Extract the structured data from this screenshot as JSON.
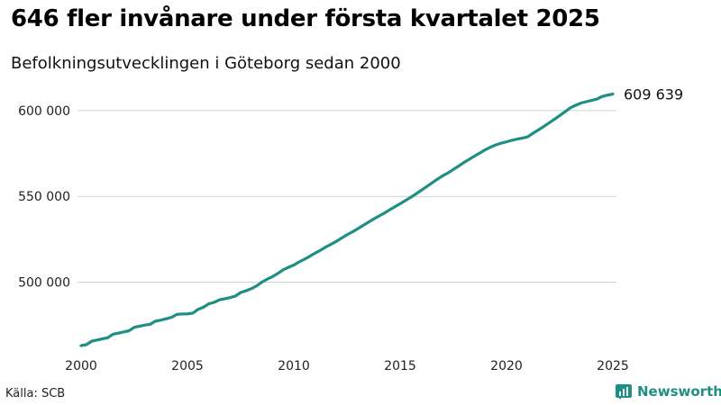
{
  "header": {
    "title": "646 fler invånare under första kvartalet 2025",
    "subtitle": "Befolkningsutvecklingen i Göteborg sedan 2000"
  },
  "footer": {
    "source": "Källa: SCB",
    "brand": "Newsworthy"
  },
  "colors": {
    "line": "#1f8f83",
    "grid": "#d4d4d4",
    "brand": "#1f8f83"
  },
  "chart_data": {
    "type": "line",
    "title": "646 fler invånare under första kvartalet 2025",
    "subtitle": "Befolkningsutvecklingen i Göteborg sedan 2000",
    "xlabel": "",
    "ylabel": "",
    "xlim": [
      2000,
      2025
    ],
    "ylim": [
      462000,
      612000
    ],
    "x_ticks": [
      2000,
      2005,
      2010,
      2015,
      2020,
      2025
    ],
    "x_tick_labels": [
      "2000",
      "2005",
      "2010",
      "2015",
      "2020",
      "2025"
    ],
    "y_ticks": [
      500000,
      550000,
      600000
    ],
    "y_tick_labels": [
      "500 000",
      "550 000",
      "600 000"
    ],
    "grid": true,
    "end_label": "609 639",
    "series": [
      {
        "name": "Befolkning Göteborg",
        "x": [
          2000.0,
          2000.25,
          2000.5,
          2000.75,
          2001.0,
          2001.25,
          2001.5,
          2001.75,
          2002.0,
          2002.25,
          2002.5,
          2002.75,
          2003.0,
          2003.25,
          2003.5,
          2003.75,
          2004.0,
          2004.25,
          2004.5,
          2004.75,
          2005.0,
          2005.25,
          2005.5,
          2005.75,
          2006.0,
          2006.25,
          2006.5,
          2006.75,
          2007.0,
          2007.25,
          2007.5,
          2007.75,
          2008.0,
          2008.25,
          2008.5,
          2008.75,
          2009.0,
          2009.25,
          2009.5,
          2009.75,
          2010.0,
          2010.25,
          2010.5,
          2010.75,
          2011.0,
          2011.25,
          2011.5,
          2011.75,
          2012.0,
          2012.25,
          2012.5,
          2012.75,
          2013.0,
          2013.25,
          2013.5,
          2013.75,
          2014.0,
          2014.25,
          2014.5,
          2014.75,
          2015.0,
          2015.25,
          2015.5,
          2015.75,
          2016.0,
          2016.25,
          2016.5,
          2016.75,
          2017.0,
          2017.25,
          2017.5,
          2017.75,
          2018.0,
          2018.25,
          2018.5,
          2018.75,
          2019.0,
          2019.25,
          2019.5,
          2019.75,
          2020.0,
          2020.25,
          2020.5,
          2020.75,
          2021.0,
          2021.25,
          2021.5,
          2021.75,
          2022.0,
          2022.25,
          2022.5,
          2022.75,
          2023.0,
          2023.25,
          2023.5,
          2023.75,
          2024.0,
          2024.25,
          2024.5,
          2024.75,
          2025.0
        ],
        "values": [
          463000,
          463600,
          465600,
          466300,
          467000,
          467600,
          469700,
          470300,
          471000,
          471700,
          473700,
          474400,
          475000,
          475500,
          477300,
          477900,
          478700,
          479500,
          481200,
          481500,
          481500,
          482000,
          484200,
          485400,
          487400,
          488200,
          489700,
          490300,
          491000,
          491900,
          494000,
          495000,
          496200,
          497800,
          500000,
          501800,
          503200,
          505100,
          507200,
          508700,
          510000,
          511800,
          513400,
          515100,
          516900,
          518600,
          520500,
          522100,
          523800,
          525700,
          527600,
          529300,
          531100,
          533000,
          534900,
          536800,
          538500,
          540200,
          542100,
          543900,
          545700,
          547600,
          549500,
          551500,
          553600,
          555700,
          557900,
          560000,
          562000,
          563700,
          565700,
          567700,
          569800,
          571600,
          573500,
          575300,
          577200,
          578700,
          580000,
          581000,
          581800,
          582700,
          583400,
          584000,
          584800,
          586800,
          588700,
          590700,
          592800,
          594900,
          597100,
          599300,
          601600,
          603100,
          604400,
          605200,
          605900,
          606700,
          608200,
          609000,
          609639
        ]
      }
    ]
  }
}
